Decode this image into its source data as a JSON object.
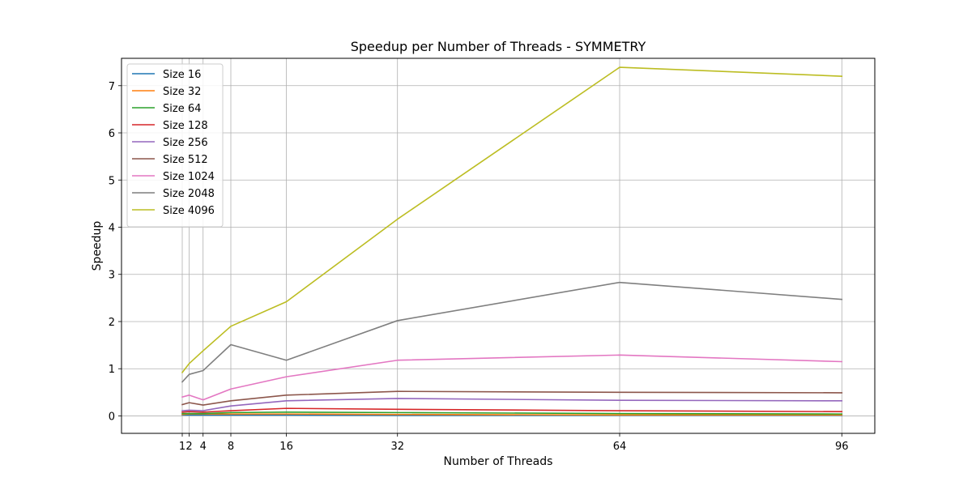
{
  "chart_data": {
    "type": "line",
    "title": "Speedup per Number of Threads - SYMMETRY",
    "xlabel": "Number of Threads",
    "ylabel": "Speedup",
    "x": [
      1,
      2,
      4,
      8,
      16,
      32,
      64,
      96
    ],
    "x_tick_labels": [
      "1",
      "2",
      "4",
      "8",
      "16",
      "32",
      "64",
      "96"
    ],
    "y_ticks": [
      0,
      1,
      2,
      3,
      4,
      5,
      6,
      7
    ],
    "xlim": [
      -7.75,
      100.75
    ],
    "ylim": [
      -0.37,
      7.58
    ],
    "grid": "x-ticks and y-ticks",
    "legend_position": "top-left",
    "series": [
      {
        "name": "Size 16",
        "color": "#1f77b4",
        "values": [
          0.02,
          0.02,
          0.02,
          0.02,
          0.02,
          0.01,
          0.01,
          0.01
        ]
      },
      {
        "name": "Size 32",
        "color": "#ff7f0e",
        "values": [
          0.03,
          0.04,
          0.04,
          0.04,
          0.04,
          0.03,
          0.02,
          0.02
        ]
      },
      {
        "name": "Size 64",
        "color": "#2ca02c",
        "values": [
          0.05,
          0.05,
          0.05,
          0.07,
          0.08,
          0.07,
          0.05,
          0.04
        ]
      },
      {
        "name": "Size 128",
        "color": "#d62728",
        "values": [
          0.08,
          0.09,
          0.08,
          0.11,
          0.16,
          0.14,
          0.11,
          0.09
        ]
      },
      {
        "name": "Size 256",
        "color": "#9467bd",
        "values": [
          0.11,
          0.12,
          0.11,
          0.21,
          0.32,
          0.37,
          0.33,
          0.32
        ]
      },
      {
        "name": "Size 512",
        "color": "#8c564b",
        "values": [
          0.24,
          0.28,
          0.23,
          0.32,
          0.44,
          0.52,
          0.5,
          0.49
        ]
      },
      {
        "name": "Size 1024",
        "color": "#e377c2",
        "values": [
          0.4,
          0.44,
          0.34,
          0.57,
          0.83,
          1.18,
          1.29,
          1.15
        ]
      },
      {
        "name": "Size 2048",
        "color": "#7f7f7f",
        "values": [
          0.72,
          0.88,
          0.96,
          1.51,
          1.18,
          2.02,
          2.83,
          2.47
        ]
      },
      {
        "name": "Size 4096",
        "color": "#bcbd22",
        "values": [
          0.92,
          1.11,
          1.38,
          1.9,
          2.42,
          4.17,
          7.39,
          7.2
        ]
      }
    ]
  }
}
